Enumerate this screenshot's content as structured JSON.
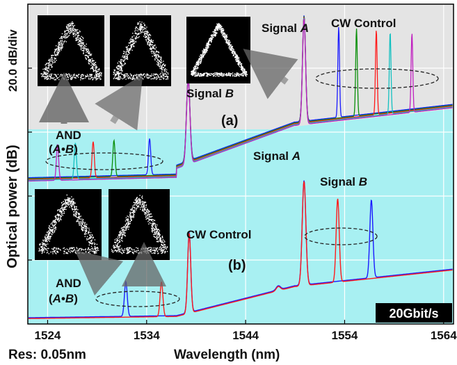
{
  "chart_data": {
    "type": "line",
    "xlabel": "Wavelength (nm)",
    "ylabel": "Optical power (dB)",
    "scale_label": "20.0 dB/div",
    "resolution_label": "Res: 0.05nm",
    "bitrate_badge": "20Gbit/s",
    "xlim": [
      1522,
      1565
    ],
    "x_ticks": [
      1524,
      1534,
      1544,
      1554,
      1564
    ],
    "y_divisions": 5,
    "panels": [
      {
        "label": "(a)",
        "annotations": {
          "signal_a": [
            "Signal ",
            "A"
          ],
          "signal_b": [
            "Signal ",
            "B"
          ],
          "cw_control": "CW Control",
          "and_label": "AND",
          "and_expr": [
            "(",
            "A",
            "•",
            "B",
            ")"
          ]
        },
        "series": [
          {
            "color": "#1a1aff",
            "and_peak_x": 1534.3,
            "control_peak_x": 1553.4
          },
          {
            "color": "#0a8f0a",
            "and_peak_x": 1530.7,
            "control_peak_x": 1555.2
          },
          {
            "color": "#ff1a1a",
            "and_peak_x": 1528.6,
            "control_peak_x": 1557.2
          },
          {
            "color": "#12c0c0",
            "and_peak_x": 1526.8,
            "control_peak_x": 1558.6
          },
          {
            "color": "#c020c0",
            "and_peak_x": 1525.0,
            "control_peak_x": 1560.8
          }
        ],
        "signal_b_peak_x": 1538.2,
        "signal_a_peak_x": 1549.9
      },
      {
        "label": "(b)",
        "annotations": {
          "signal_a": [
            "Signal ",
            "A"
          ],
          "signal_b": [
            "Signal ",
            "B"
          ],
          "cw_control": "CW Control",
          "and_label": "AND",
          "and_expr": [
            "(",
            "A",
            "•",
            "B",
            ")"
          ]
        },
        "series": [
          {
            "color": "#1a1aff",
            "and_peak_x": 1531.9,
            "signal_b_peak_x": 1556.7
          },
          {
            "color": "#ff1a1a",
            "and_peak_x": 1535.5,
            "signal_b_peak_x": 1553.3
          }
        ],
        "cw_control_peak_x": 1538.3,
        "signal_a_peak_x": 1549.9
      }
    ],
    "colors": {
      "panel_a_background": "#e4e4e4",
      "panel_b_background": "#a8f0f2",
      "fill_under_b": "#fbfa9a"
    }
  }
}
